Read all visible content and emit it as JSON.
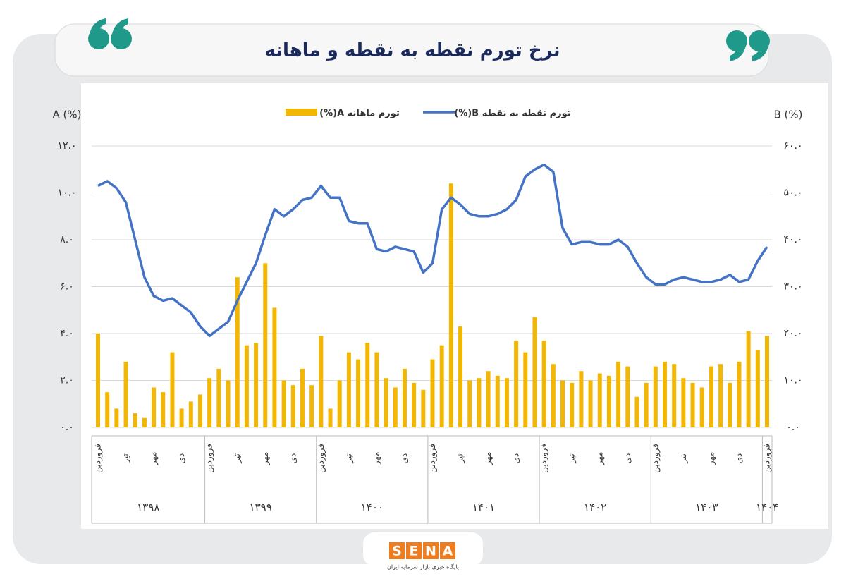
{
  "chart_data": {
    "type": "bar-line",
    "title": "نرخ تورم نقطه به نقطه و ماهانه",
    "y_label": "A (%)",
    "y2_label": "B (%)",
    "categories": [
      "فروردین",
      null,
      null,
      "تیر",
      null,
      null,
      "مهر",
      null,
      null,
      "دی",
      null,
      null,
      "فروردین",
      null,
      null,
      "تیر",
      null,
      null,
      "مهر",
      null,
      null,
      "دی",
      null,
      null,
      "فروردین",
      null,
      null,
      "تیر",
      null,
      null,
      "مهر",
      null,
      null,
      "دی",
      null,
      null,
      "فروردین",
      null,
      null,
      "تیر",
      null,
      null,
      "مهر",
      null,
      null,
      "دی",
      null,
      null,
      "فروردین",
      null,
      null,
      "تیر",
      null,
      null,
      "مهر",
      null,
      null,
      "دی",
      null,
      null,
      "فروردین",
      null,
      null,
      "تیر",
      null,
      null,
      "مهر",
      null,
      null,
      "دی",
      null,
      null,
      "فروردین"
    ],
    "years": [
      "۱۳۹۸",
      "۱۳۹۹",
      "۱۴۰۰",
      "۱۴۰۱",
      "۱۴۰۲",
      "۱۴۰۳",
      "۱۴۰۴"
    ],
    "series": [
      {
        "name": "تورم ماهانه A(%)",
        "color": "#f2b705",
        "kind": "bar",
        "values": [
          4.0,
          1.5,
          0.8,
          2.8,
          0.6,
          0.4,
          1.7,
          1.5,
          3.2,
          0.8,
          1.1,
          1.4,
          2.1,
          2.5,
          2.0,
          6.4,
          3.5,
          3.6,
          7.0,
          5.1,
          2.0,
          1.8,
          2.5,
          1.8,
          3.9,
          0.8,
          2.0,
          3.2,
          2.9,
          3.6,
          3.2,
          2.1,
          1.7,
          2.5,
          1.9,
          1.6,
          2.9,
          3.5,
          10.4,
          4.3,
          2.0,
          2.1,
          2.4,
          2.2,
          2.1,
          3.7,
          3.2,
          4.7,
          3.7,
          2.7,
          2.0,
          1.9,
          2.4,
          2.0,
          2.3,
          2.2,
          2.8,
          2.6,
          1.3,
          1.9,
          2.6,
          2.8,
          2.7,
          2.1,
          1.9,
          1.7,
          2.6,
          2.7,
          1.9,
          2.8,
          4.1,
          3.3,
          3.9
        ]
      },
      {
        "name": "تورم نقطه به نقطه B(%)",
        "color": "#4472c4",
        "kind": "line",
        "axis": "y2",
        "values": [
          51.5,
          52.5,
          51,
          48,
          40,
          32,
          28,
          27,
          27.5,
          26,
          24.5,
          21.5,
          19.5,
          21,
          22.5,
          27,
          31,
          35,
          41,
          46.5,
          45,
          46.5,
          48.5,
          49,
          51.5,
          49,
          49,
          44,
          43.5,
          43.5,
          38,
          37.5,
          38.5,
          38,
          37.5,
          33,
          35,
          46.5,
          49,
          47.5,
          45.5,
          45,
          45,
          45.5,
          46.5,
          48.5,
          53.5,
          55,
          56,
          54.5,
          42.5,
          39,
          39.5,
          39.5,
          39,
          39,
          40,
          38.5,
          35,
          32,
          30.5,
          30.5,
          31.5,
          32,
          31.5,
          31,
          31,
          31.5,
          32.5,
          31,
          31.5,
          35.5,
          38.5
        ]
      }
    ],
    "ylim": [
      0,
      12
    ],
    "yticks": [
      {
        "value": 0,
        "label": "۰.۰"
      },
      {
        "value": 2,
        "label": "۲.۰"
      },
      {
        "value": 4,
        "label": "۴.۰"
      },
      {
        "value": 6,
        "label": "۶.۰"
      },
      {
        "value": 8,
        "label": "۸.۰"
      },
      {
        "value": 10,
        "label": "۱۰.۰"
      },
      {
        "value": 12,
        "label": "۱۲.۰"
      }
    ],
    "y2lim": [
      0,
      60
    ],
    "y2ticks": [
      {
        "value": 0,
        "label": "۰.۰"
      },
      {
        "value": 10,
        "label": "۱۰.۰"
      },
      {
        "value": 20,
        "label": "۲۰.۰"
      },
      {
        "value": 30,
        "label": "۳۰.۰"
      },
      {
        "value": 40,
        "label": "۴۰.۰"
      },
      {
        "value": 50,
        "label": "۵۰.۰"
      },
      {
        "value": 60,
        "label": "۶۰.۰"
      }
    ],
    "grid": true,
    "legend": "top"
  },
  "logo": {
    "text": "SENA",
    "tagline": "پایگاه خبری بازار سرمایه ایران"
  }
}
